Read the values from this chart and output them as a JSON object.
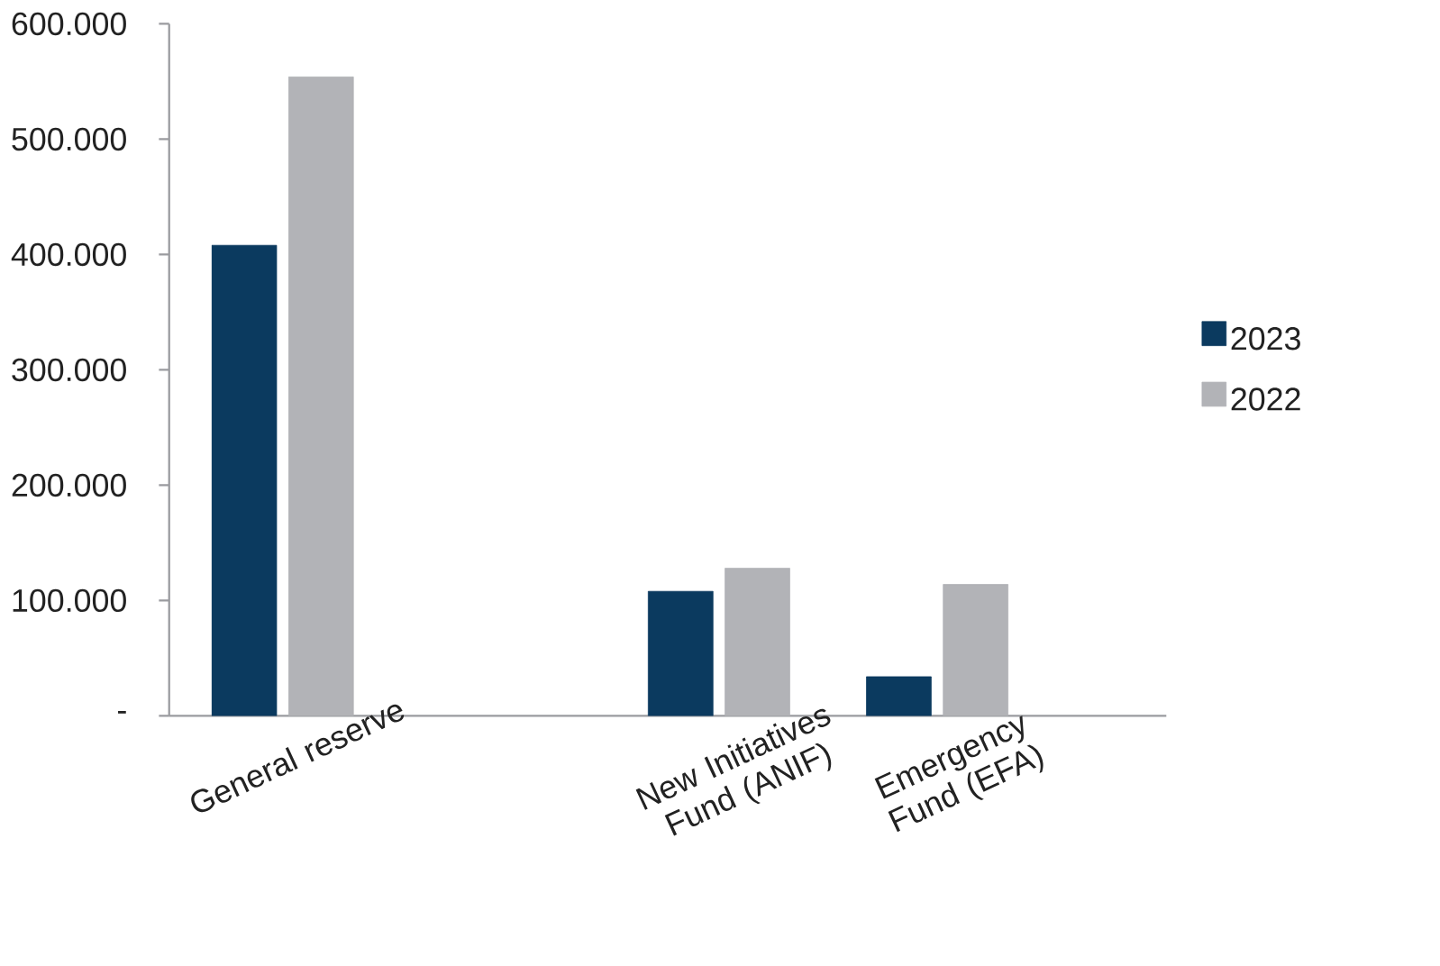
{
  "chart_data": {
    "type": "bar",
    "categories": [
      "General reserve",
      null,
      "New Initiatives Fund (ANIF)",
      "Emergency Fund (EFA)"
    ],
    "series": [
      {
        "name": "2023",
        "color": "#0b3a5f",
        "values": [
          408000,
          null,
          108000,
          34000
        ]
      },
      {
        "name": "2022",
        "color": "#b2b3b7",
        "values": [
          554000,
          null,
          128000,
          114000
        ]
      }
    ],
    "ylim": [
      0,
      600000
    ],
    "yticks": [
      {
        "value": 0,
        "label": "-"
      },
      {
        "value": 100000,
        "label": "100.000"
      },
      {
        "value": 200000,
        "label": "200.000"
      },
      {
        "value": 300000,
        "label": "300.000"
      },
      {
        "value": 400000,
        "label": "400.000"
      },
      {
        "value": 500000,
        "label": "500.000"
      },
      {
        "value": 600000,
        "label": "600.000"
      }
    ],
    "legend": "right"
  }
}
